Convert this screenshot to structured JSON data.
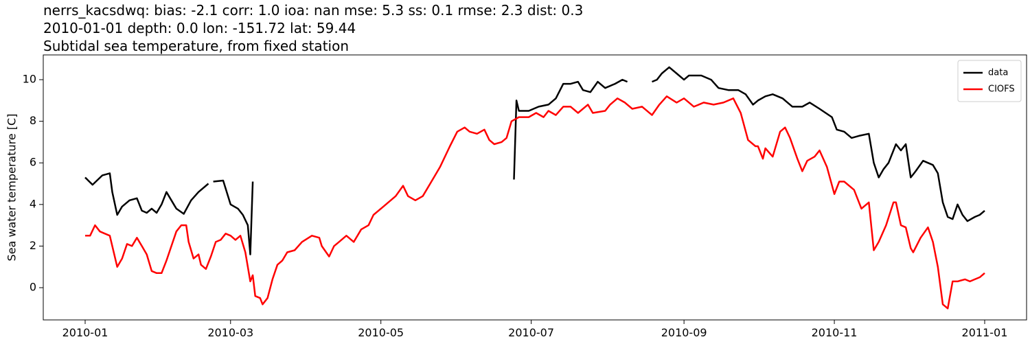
{
  "chart_data": {
    "type": "line",
    "title": [
      "nerrs_kacsdwq: bias: -2.1  corr: 1.0  ioa: nan  mse: 5.3  ss: 0.1  rmse: 2.3  dist: 0.3",
      "2010-01-01 depth: 0.0 lon: -151.72 lat: 59.44",
      "Subtidal sea temperature, from fixed station"
    ],
    "ylabel": "Sea water temperature [C]",
    "xlim": [
      -17,
      382
    ],
    "ylim": [
      -1.55,
      11.19
    ],
    "xticks": [
      {
        "value": 0,
        "label": "2010-01"
      },
      {
        "value": 59,
        "label": "2010-03"
      },
      {
        "value": 120,
        "label": "2010-05"
      },
      {
        "value": 181,
        "label": "2010-07"
      },
      {
        "value": 243,
        "label": "2010-09"
      },
      {
        "value": 304,
        "label": "2010-11"
      },
      {
        "value": 365,
        "label": "2011-01"
      }
    ],
    "yticks": [
      0,
      2,
      4,
      6,
      8,
      10
    ],
    "grid": false,
    "legend": "upper right",
    "series": [
      {
        "name": "data",
        "color": "#000000",
        "x": [
          0,
          3,
          7,
          10,
          11,
          13,
          15,
          18,
          21,
          23,
          25,
          27,
          29,
          31,
          33,
          35,
          37,
          40,
          43,
          46,
          50,
          51,
          52,
          56,
          59,
          62,
          64,
          66,
          67,
          68,
          120,
          174,
          175,
          176,
          180,
          184,
          188,
          191,
          194,
          197,
          200,
          202,
          205,
          208,
          211,
          215,
          218,
          220,
          224,
          230,
          232,
          234,
          237,
          240,
          243,
          245,
          250,
          254,
          257,
          261,
          265,
          268,
          271,
          273,
          276,
          279,
          283,
          287,
          291,
          294,
          298,
          303,
          305,
          308,
          311,
          314,
          318,
          320,
          322,
          324,
          326,
          329,
          331,
          333,
          335,
          337,
          340,
          344,
          346,
          348,
          350,
          352,
          354,
          356,
          358,
          361,
          363,
          365
        ],
        "values": [
          5.3,
          4.95,
          5.4,
          5.5,
          4.6,
          3.5,
          3.9,
          4.2,
          4.3,
          3.7,
          3.6,
          3.8,
          3.6,
          4.0,
          4.6,
          4.2,
          3.8,
          3.55,
          4.2,
          4.6,
          5.0,
          null,
          5.1,
          5.15,
          4.0,
          3.8,
          3.5,
          3.0,
          1.6,
          5.1,
          null,
          5.2,
          9.0,
          8.5,
          8.5,
          8.7,
          8.8,
          9.1,
          9.8,
          9.8,
          9.9,
          9.5,
          9.4,
          9.9,
          9.6,
          9.8,
          10.0,
          9.9,
          null,
          9.9,
          10.0,
          10.3,
          10.6,
          10.3,
          10.0,
          10.2,
          10.2,
          10.0,
          9.6,
          9.5,
          9.5,
          9.3,
          8.8,
          9.0,
          9.2,
          9.3,
          9.1,
          8.7,
          8.7,
          8.9,
          8.6,
          8.2,
          7.6,
          7.5,
          7.2,
          7.3,
          7.4,
          6.0,
          5.3,
          5.7,
          6.0,
          6.9,
          6.6,
          6.9,
          5.3,
          5.6,
          6.1,
          5.9,
          5.5,
          4.1,
          3.4,
          3.3,
          4.0,
          3.5,
          3.2,
          3.4,
          3.5,
          3.7
        ]
      },
      {
        "name": "CIOFS",
        "color": "#ff0000",
        "x": [
          0,
          2,
          4,
          6,
          8,
          10,
          11,
          13,
          15,
          17,
          19,
          21,
          23,
          25,
          27,
          29,
          31,
          33,
          35,
          37,
          39,
          41,
          42,
          44,
          46,
          47,
          49,
          51,
          53,
          55,
          57,
          59,
          61,
          63,
          65,
          67,
          68,
          69,
          71,
          72,
          74,
          76,
          78,
          80,
          82,
          85,
          88,
          92,
          95,
          96,
          99,
          101,
          103,
          106,
          109,
          112,
          115,
          117,
          121,
          126,
          129,
          131,
          134,
          137,
          140,
          144,
          148,
          151,
          154,
          156,
          159,
          162,
          164,
          166,
          169,
          171,
          173,
          176,
          180,
          183,
          186,
          188,
          191,
          194,
          197,
          200,
          204,
          206,
          211,
          213,
          216,
          219,
          222,
          226,
          230,
          233,
          236,
          240,
          243,
          247,
          251,
          255,
          259,
          263,
          266,
          269,
          272,
          273,
          275,
          276,
          279,
          282,
          284,
          286,
          289,
          291,
          293,
          296,
          298,
          301,
          304,
          306,
          308,
          312,
          315,
          318,
          320,
          322,
          325,
          328,
          329,
          331,
          333,
          335,
          336,
          339,
          342,
          344,
          346,
          348,
          350,
          352,
          354,
          357,
          359,
          361,
          363,
          365
        ],
        "values": [
          2.5,
          2.5,
          3.0,
          2.7,
          2.6,
          2.5,
          2.0,
          1.0,
          1.4,
          2.1,
          2.0,
          2.4,
          2.0,
          1.6,
          0.8,
          0.7,
          0.7,
          1.3,
          2.0,
          2.7,
          3.0,
          3.0,
          2.2,
          1.4,
          1.6,
          1.1,
          0.9,
          1.5,
          2.2,
          2.3,
          2.6,
          2.5,
          2.3,
          2.5,
          1.7,
          0.3,
          0.6,
          -0.4,
          -0.5,
          -0.8,
          -0.5,
          0.4,
          1.1,
          1.3,
          1.7,
          1.8,
          2.2,
          2.5,
          2.4,
          2.0,
          1.5,
          2.0,
          2.2,
          2.5,
          2.2,
          2.8,
          3.0,
          3.5,
          3.9,
          4.4,
          4.9,
          4.4,
          4.2,
          4.4,
          5.0,
          5.8,
          6.8,
          7.5,
          7.7,
          7.5,
          7.4,
          7.6,
          7.1,
          6.9,
          7.0,
          7.2,
          8.0,
          8.2,
          8.2,
          8.4,
          8.2,
          8.5,
          8.3,
          8.7,
          8.7,
          8.4,
          8.8,
          8.4,
          8.5,
          8.8,
          9.1,
          8.9,
          8.6,
          8.7,
          8.3,
          8.8,
          9.2,
          8.9,
          9.1,
          8.7,
          8.9,
          8.8,
          8.9,
          9.1,
          8.4,
          7.1,
          6.8,
          6.8,
          6.2,
          6.7,
          6.3,
          7.5,
          7.7,
          7.2,
          6.2,
          5.6,
          6.1,
          6.3,
          6.6,
          5.8,
          4.5,
          5.1,
          5.1,
          4.7,
          3.8,
          4.1,
          1.8,
          2.2,
          3.0,
          4.1,
          4.1,
          3.0,
          2.9,
          1.9,
          1.7,
          2.4,
          2.9,
          2.2,
          1.0,
          -0.8,
          -1.0,
          0.3,
          0.3,
          0.4,
          0.3,
          0.4,
          0.5,
          0.7
        ]
      }
    ]
  }
}
